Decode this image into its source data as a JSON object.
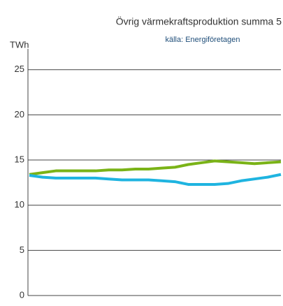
{
  "chart_data": {
    "type": "line",
    "title": "Övrig värmekraftsproduktion summa 5",
    "subtitle": "källa: Energiföretagen",
    "y_label": "TWh",
    "categories": [
      null,
      null,
      null,
      null,
      null,
      null,
      null,
      null,
      null,
      null,
      null,
      null,
      null,
      null,
      null,
      null,
      null,
      null,
      null,
      null
    ],
    "series": [
      {
        "name": null,
        "color": "#7ab317",
        "values": [
          13.4,
          13.6,
          13.8,
          13.8,
          13.8,
          13.8,
          13.9,
          13.9,
          14.0,
          14.0,
          14.1,
          14.2,
          14.5,
          14.7,
          14.9,
          14.8,
          14.7,
          14.6,
          14.7,
          14.8
        ]
      },
      {
        "name": null,
        "color": "#1fb4e0",
        "values": [
          13.3,
          13.1,
          13.0,
          13.0,
          13.0,
          13.0,
          12.9,
          12.8,
          12.8,
          12.8,
          12.7,
          12.6,
          12.3,
          12.3,
          12.3,
          12.4,
          12.7,
          12.9,
          13.1,
          13.4
        ]
      }
    ],
    "ylim": [
      0,
      27.3
    ],
    "yticks": [
      0,
      5,
      10,
      15,
      20,
      25
    ],
    "grid": true
  }
}
